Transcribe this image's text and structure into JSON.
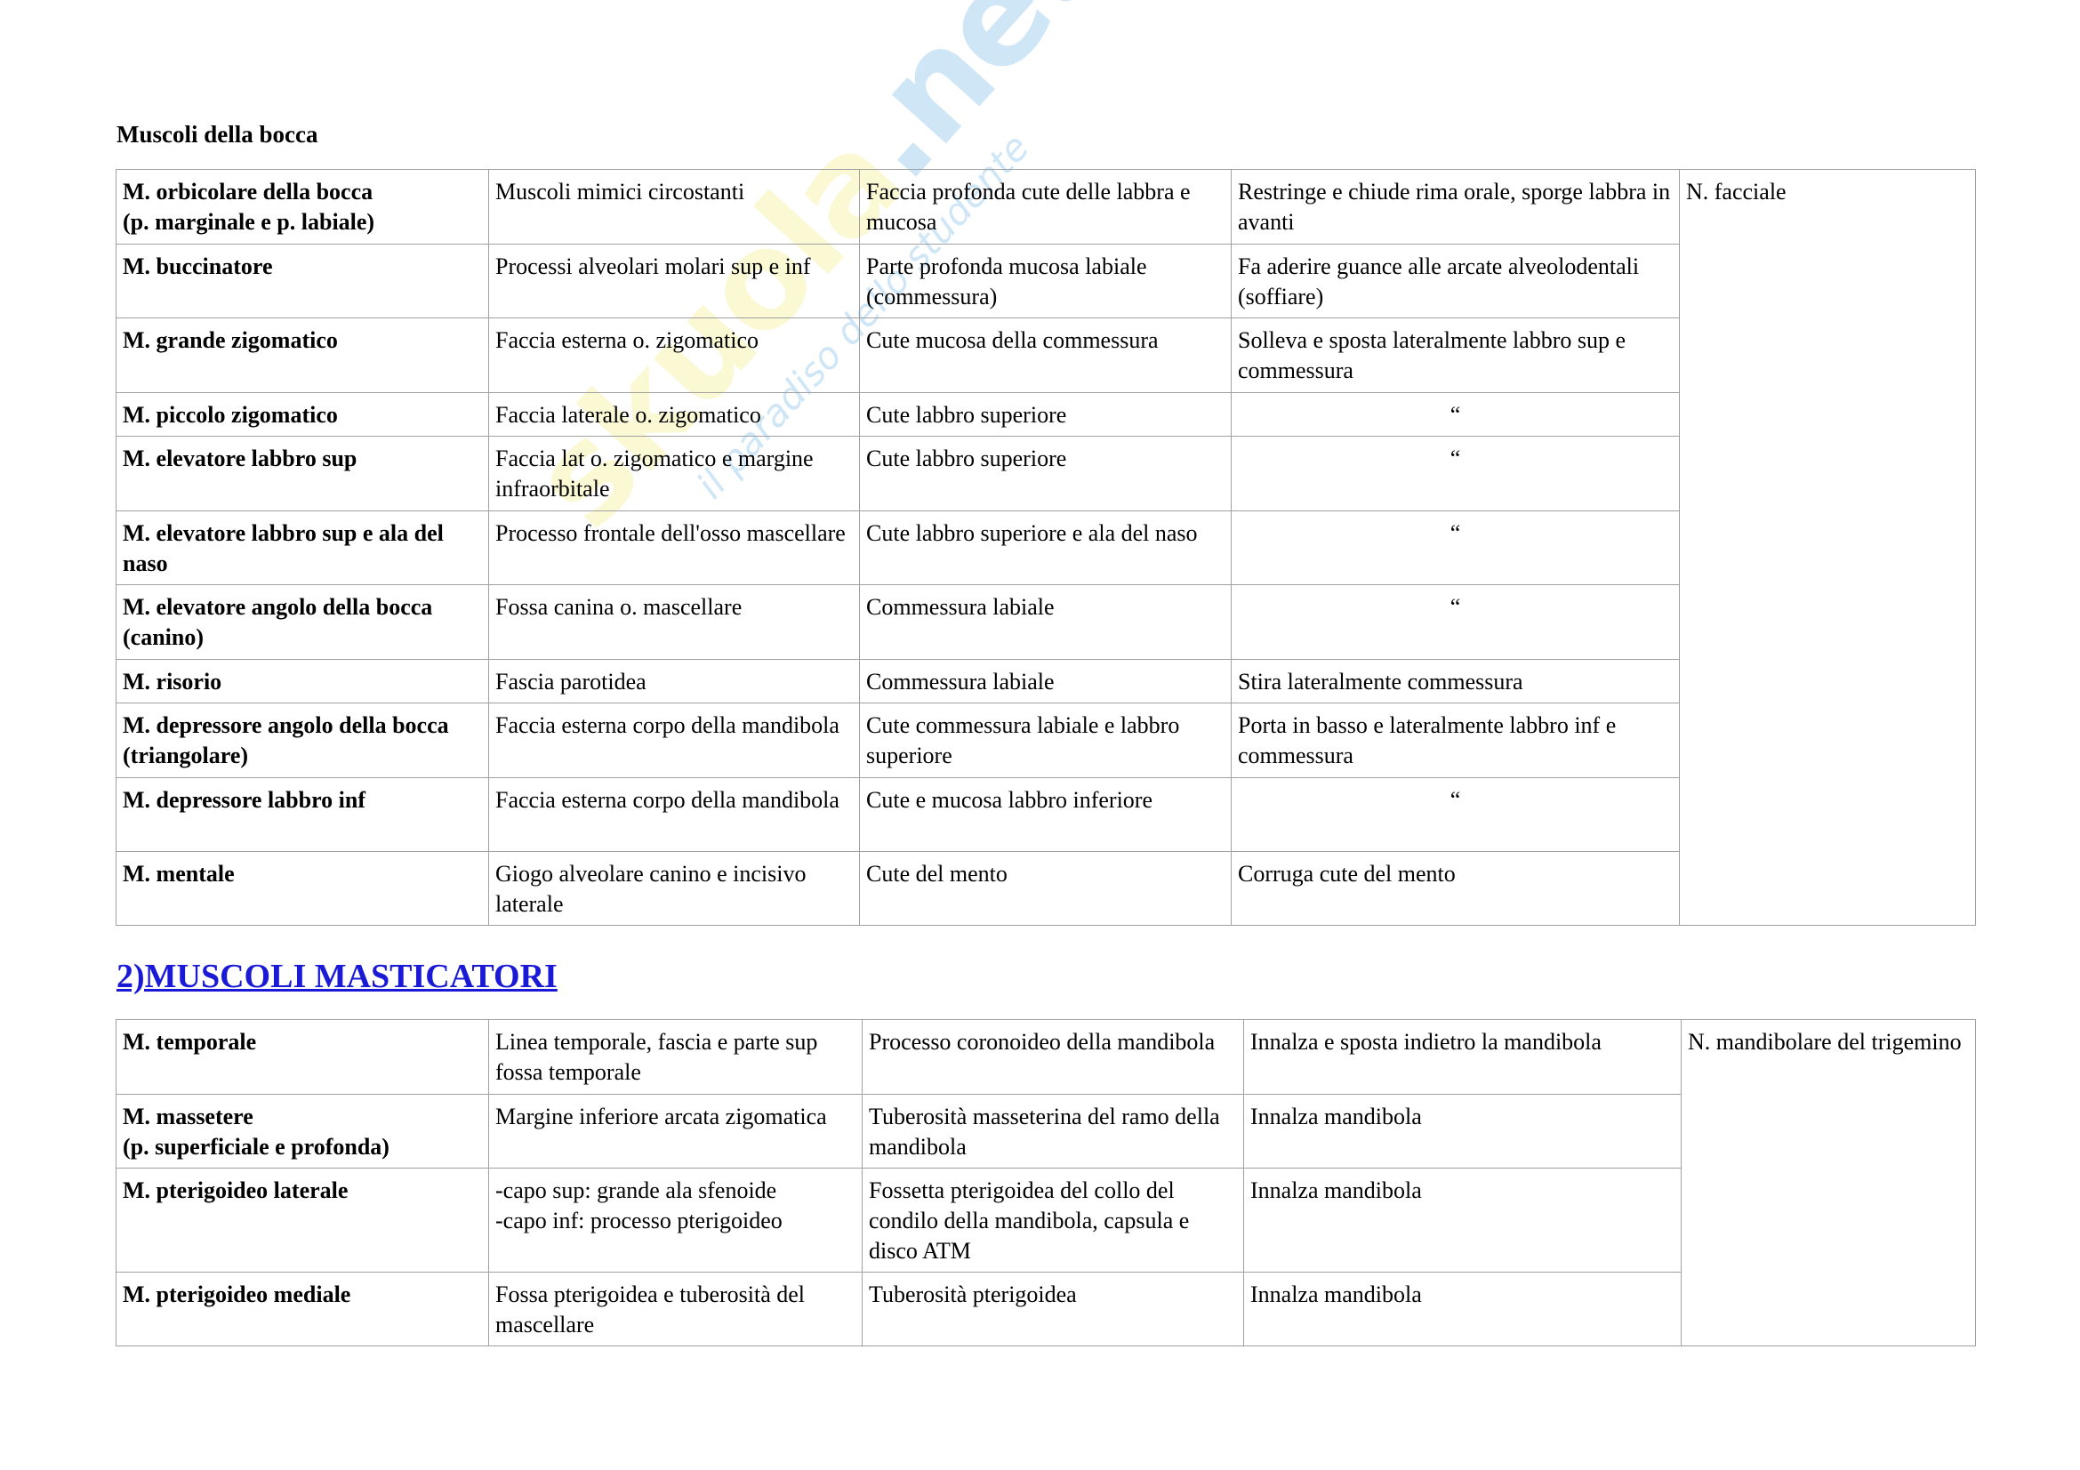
{
  "watermark": {
    "brand": "skuola",
    "tld": ".net",
    "tagline": "il paradiso dello studente"
  },
  "section1": {
    "title": "Muscoli della bocca",
    "innervation": "N. facciale",
    "rows": [
      [
        "M. orbicolare della bocca\n(p. marginale e p. labiale)",
        "Muscoli mimici circostanti",
        "Faccia profonda cute delle labbra e mucosa",
        "Restringe e chiude rima orale, sporge labbra in avanti"
      ],
      [
        "M. buccinatore",
        "Processi alveolari molari sup e inf",
        "Parte profonda mucosa labiale (commessura)",
        "Fa aderire guance alle arcate alveolodentali (soffiare)"
      ],
      [
        "M. grande zigomatico",
        "Faccia esterna o. zigomatico",
        "Cute mucosa della commessura",
        "Solleva e sposta lateralmente labbro sup e commessura"
      ],
      [
        "M. piccolo zigomatico",
        "Faccia laterale o. zigomatico",
        "Cute labbro superiore",
        "“"
      ],
      [
        "M. elevatore labbro sup",
        "Faccia lat o. zigomatico e margine infraorbitale",
        "Cute labbro superiore",
        "“"
      ],
      [
        "M. elevatore labbro sup e ala del naso",
        "Processo frontale dell'osso mascellare",
        "Cute labbro superiore e ala del naso",
        "“"
      ],
      [
        "M. elevatore angolo della bocca (canino)",
        "Fossa canina o. mascellare",
        "Commessura labiale",
        "“"
      ],
      [
        "M. risorio",
        "Fascia parotidea",
        "Commessura labiale",
        "Stira lateralmente commessura"
      ],
      [
        "M. depressore angolo della bocca (triangolare)",
        "Faccia esterna corpo della mandibola",
        "Cute commessura labiale e labbro superiore",
        "Porta in basso e lateralmente labbro inf e commessura"
      ],
      [
        "M. depressore labbro inf",
        "Faccia esterna corpo della mandibola",
        "Cute e mucosa labbro inferiore",
        "“"
      ],
      [
        "M. mentale",
        "Giogo alveolare canino e incisivo laterale",
        "Cute del mento",
        "Corruga cute del mento"
      ]
    ]
  },
  "section2": {
    "title": "2)MUSCOLI MASTICATORI",
    "link_color": "#1a1ad6",
    "innervation": "N. mandibolare del trigemino",
    "rows": [
      [
        "M. temporale",
        "Linea temporale, fascia e parte sup fossa temporale",
        "Processo coronoideo della mandibola",
        "Innalza e sposta indietro la mandibola"
      ],
      [
        "M. massetere\n(p. superficiale e profonda)",
        "Margine inferiore arcata zigomatica",
        "Tuberosità masseterina del ramo della mandibola",
        "Innalza mandibola"
      ],
      [
        "M. pterigoideo laterale",
        "-capo sup: grande ala sfenoide\n-capo inf: processo pterigoideo",
        "Fossetta pterigoidea del collo del condilo della mandibola, capsula e disco ATM",
        "Innalza mandibola"
      ],
      [
        "M. pterigoideo mediale",
        "Fossa pterigoidea e tuberosità del mascellare",
        "Tuberosità pterigoidea",
        "Innalza mandibola"
      ]
    ]
  }
}
